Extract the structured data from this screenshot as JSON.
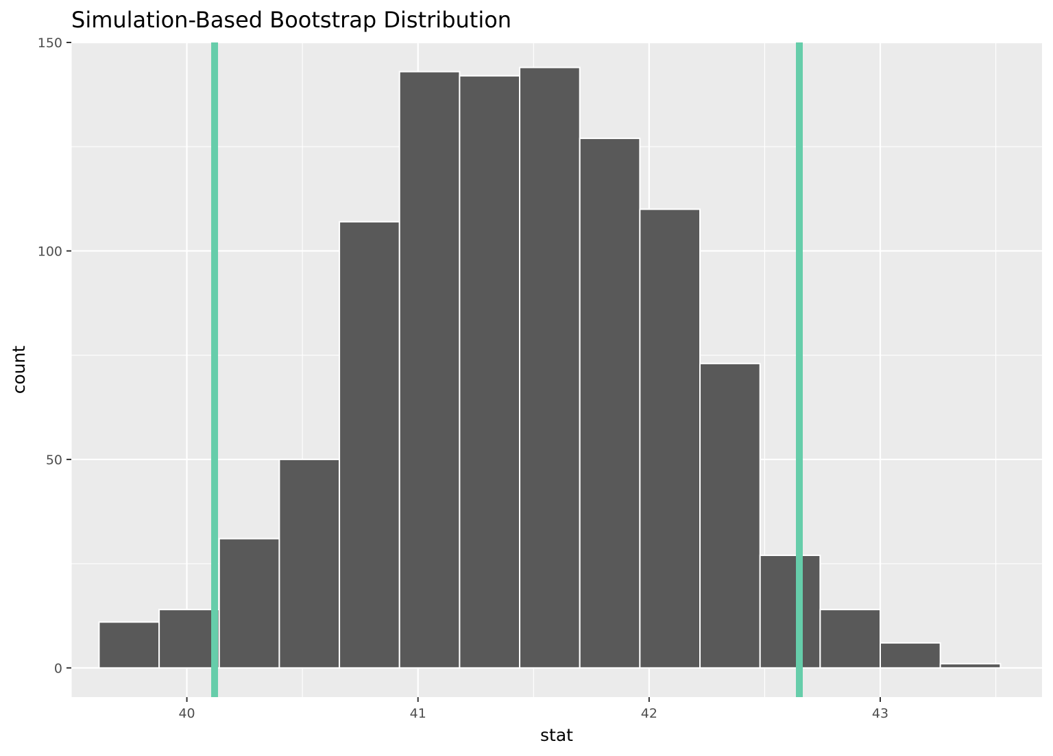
{
  "chart_data": {
    "type": "bar",
    "title": "Simulation-Based Bootstrap Distribution",
    "xlabel": "stat",
    "ylabel": "count",
    "bins": [
      {
        "x0": 39.62,
        "x1": 39.88,
        "count": 11
      },
      {
        "x0": 39.88,
        "x1": 40.14,
        "count": 14
      },
      {
        "x0": 40.14,
        "x1": 40.4,
        "count": 31
      },
      {
        "x0": 40.4,
        "x1": 40.66,
        "count": 50
      },
      {
        "x0": 40.66,
        "x1": 40.92,
        "count": 107
      },
      {
        "x0": 40.92,
        "x1": 41.18,
        "count": 143
      },
      {
        "x0": 41.18,
        "x1": 41.44,
        "count": 142
      },
      {
        "x0": 41.44,
        "x1": 41.7,
        "count": 144
      },
      {
        "x0": 41.7,
        "x1": 41.96,
        "count": 127
      },
      {
        "x0": 41.96,
        "x1": 42.22,
        "count": 110
      },
      {
        "x0": 42.22,
        "x1": 42.48,
        "count": 73
      },
      {
        "x0": 42.48,
        "x1": 42.74,
        "count": 27
      },
      {
        "x0": 42.74,
        "x1": 43.0,
        "count": 14
      },
      {
        "x0": 43.0,
        "x1": 43.26,
        "count": 6
      },
      {
        "x0": 43.26,
        "x1": 43.52,
        "count": 1
      }
    ],
    "reference_lines": [
      40.12,
      42.65
    ],
    "xticks": [
      40,
      41,
      42,
      43
    ],
    "xtick_labels": [
      "40",
      "41",
      "42",
      "43"
    ],
    "yticks": [
      0,
      50,
      100,
      150
    ],
    "ytick_labels": [
      "0",
      "50",
      "100",
      "150"
    ],
    "xlim": [
      39.5,
      43.7
    ],
    "ylim": [
      -7,
      150
    ],
    "grid": true,
    "colors": {
      "panel": "#ebebeb",
      "grid": "#ffffff",
      "bar_fill": "#595959",
      "bar_outline": "#ffffff",
      "reference_line": "#66cdaa"
    }
  }
}
